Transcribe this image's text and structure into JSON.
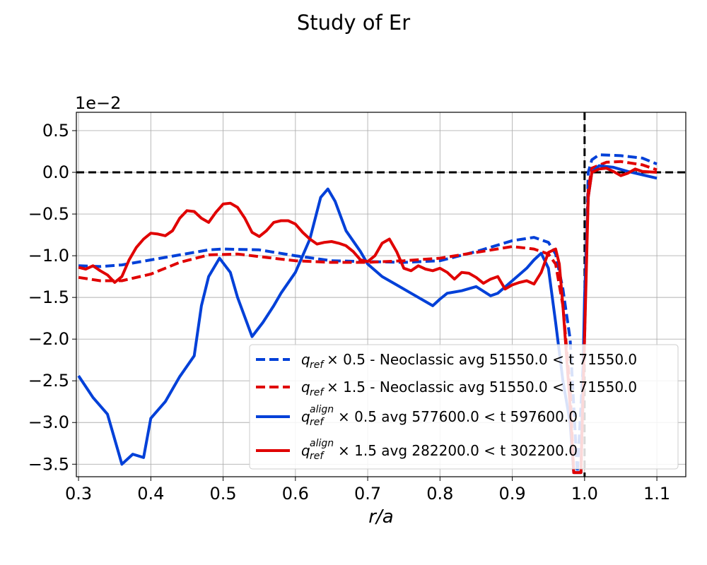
{
  "chart_data": {
    "type": "line",
    "title": "Study of Er",
    "xlabel": "r/a",
    "ylabel": "",
    "offset_label": "1e−2",
    "xlim": [
      0.297,
      1.14
    ],
    "ylim": [
      -3.65,
      0.72
    ],
    "x_ticks": [
      {
        "value": 0.3,
        "label": "0.3"
      },
      {
        "value": 0.4,
        "label": "0.4"
      },
      {
        "value": 0.5,
        "label": "0.5"
      },
      {
        "value": 0.6,
        "label": "0.6"
      },
      {
        "value": 0.7,
        "label": "0.7"
      },
      {
        "value": 0.8,
        "label": "0.8"
      },
      {
        "value": 0.9,
        "label": "0.9"
      },
      {
        "value": 1.0,
        "label": "1.0"
      },
      {
        "value": 1.1,
        "label": "1.1"
      }
    ],
    "y_ticks": [
      {
        "value": 0.5,
        "label": "0.5"
      },
      {
        "value": 0.0,
        "label": "0.0"
      },
      {
        "value": -0.5,
        "label": "−0.5"
      },
      {
        "value": -1.0,
        "label": "−1.0"
      },
      {
        "value": -1.5,
        "label": "−1.5"
      },
      {
        "value": -2.0,
        "label": "−2.0"
      },
      {
        "value": -2.5,
        "label": "−2.5"
      },
      {
        "value": -3.0,
        "label": "−3.0"
      },
      {
        "value": -3.5,
        "label": "−3.5"
      }
    ],
    "grid": true,
    "legend_position": "lower-right",
    "reference_lines": [
      {
        "orientation": "horizontal",
        "value": 0.0,
        "color": "#000000",
        "style": "dashed"
      },
      {
        "orientation": "vertical",
        "value": 1.0,
        "color": "#000000",
        "style": "dashed"
      }
    ],
    "series": [
      {
        "sym_base": "q",
        "sym_sub": "ref",
        "sym_sup": "",
        "label_rest": " × 0.5 - Neoclassic avg 51550.0 < t 71550.0",
        "color": "#0040d8",
        "style": "dashed",
        "points": [
          [
            0.3,
            -1.12
          ],
          [
            0.33,
            -1.13
          ],
          [
            0.36,
            -1.11
          ],
          [
            0.4,
            -1.05
          ],
          [
            0.44,
            -0.99
          ],
          [
            0.48,
            -0.93
          ],
          [
            0.5,
            -0.92
          ],
          [
            0.55,
            -0.93
          ],
          [
            0.6,
            -1.0
          ],
          [
            0.65,
            -1.06
          ],
          [
            0.7,
            -1.07
          ],
          [
            0.75,
            -1.08
          ],
          [
            0.8,
            -1.06
          ],
          [
            0.85,
            -0.95
          ],
          [
            0.9,
            -0.82
          ],
          [
            0.93,
            -0.78
          ],
          [
            0.95,
            -0.84
          ],
          [
            0.96,
            -0.98
          ],
          [
            0.97,
            -1.4
          ],
          [
            0.98,
            -2.0
          ],
          [
            0.99,
            -3.6
          ],
          [
            1.0,
            -2.0
          ],
          [
            1.005,
            0.0
          ],
          [
            1.01,
            0.15
          ],
          [
            1.02,
            0.21
          ],
          [
            1.05,
            0.2
          ],
          [
            1.08,
            0.17
          ],
          [
            1.1,
            0.1
          ]
        ]
      },
      {
        "sym_base": "q",
        "sym_sub": "ref",
        "sym_sup": "",
        "label_rest": " × 1.5 - Neoclassic avg 51550.0 < t 71550.0",
        "color": "#e00000",
        "style": "dashed",
        "points": [
          [
            0.3,
            -1.26
          ],
          [
            0.33,
            -1.3
          ],
          [
            0.36,
            -1.3
          ],
          [
            0.4,
            -1.22
          ],
          [
            0.44,
            -1.08
          ],
          [
            0.48,
            -0.99
          ],
          [
            0.52,
            -0.98
          ],
          [
            0.56,
            -1.02
          ],
          [
            0.6,
            -1.06
          ],
          [
            0.65,
            -1.08
          ],
          [
            0.7,
            -1.08
          ],
          [
            0.75,
            -1.06
          ],
          [
            0.8,
            -1.03
          ],
          [
            0.85,
            -0.96
          ],
          [
            0.9,
            -0.89
          ],
          [
            0.93,
            -0.92
          ],
          [
            0.95,
            -0.98
          ],
          [
            0.96,
            -1.1
          ],
          [
            0.97,
            -1.6
          ],
          [
            0.98,
            -2.6
          ],
          [
            0.985,
            -3.6
          ],
          [
            0.995,
            -3.6
          ],
          [
            1.0,
            -1.8
          ],
          [
            1.005,
            -0.2
          ],
          [
            1.01,
            0.05
          ],
          [
            1.03,
            0.12
          ],
          [
            1.05,
            0.13
          ],
          [
            1.08,
            0.09
          ],
          [
            1.1,
            0.03
          ]
        ]
      },
      {
        "sym_base": "q",
        "sym_sub": "ref",
        "sym_sup": "align",
        "label_rest": " × 0.5 avg 577600.0 < t 597600.0",
        "color": "#0040d8",
        "style": "solid",
        "points": [
          [
            0.3,
            -2.44
          ],
          [
            0.32,
            -2.7
          ],
          [
            0.34,
            -2.9
          ],
          [
            0.36,
            -3.5
          ],
          [
            0.375,
            -3.38
          ],
          [
            0.39,
            -3.42
          ],
          [
            0.4,
            -2.95
          ],
          [
            0.42,
            -2.75
          ],
          [
            0.44,
            -2.45
          ],
          [
            0.46,
            -2.2
          ],
          [
            0.47,
            -1.6
          ],
          [
            0.48,
            -1.25
          ],
          [
            0.495,
            -1.03
          ],
          [
            0.51,
            -1.2
          ],
          [
            0.52,
            -1.5
          ],
          [
            0.54,
            -1.97
          ],
          [
            0.555,
            -1.8
          ],
          [
            0.57,
            -1.6
          ],
          [
            0.58,
            -1.45
          ],
          [
            0.6,
            -1.2
          ],
          [
            0.61,
            -1.0
          ],
          [
            0.62,
            -0.8
          ],
          [
            0.635,
            -0.3
          ],
          [
            0.645,
            -0.2
          ],
          [
            0.655,
            -0.35
          ],
          [
            0.67,
            -0.7
          ],
          [
            0.69,
            -0.95
          ],
          [
            0.7,
            -1.1
          ],
          [
            0.72,
            -1.25
          ],
          [
            0.74,
            -1.35
          ],
          [
            0.76,
            -1.45
          ],
          [
            0.78,
            -1.55
          ],
          [
            0.79,
            -1.6
          ],
          [
            0.8,
            -1.52
          ],
          [
            0.81,
            -1.45
          ],
          [
            0.83,
            -1.42
          ],
          [
            0.85,
            -1.37
          ],
          [
            0.87,
            -1.48
          ],
          [
            0.88,
            -1.45
          ],
          [
            0.9,
            -1.3
          ],
          [
            0.92,
            -1.15
          ],
          [
            0.93,
            -1.05
          ],
          [
            0.94,
            -0.97
          ],
          [
            0.95,
            -1.15
          ],
          [
            0.96,
            -1.8
          ],
          [
            0.97,
            -2.5
          ],
          [
            0.98,
            -3.0
          ],
          [
            0.985,
            -3.6
          ],
          [
            0.995,
            -3.6
          ],
          [
            1.0,
            -1.5
          ],
          [
            1.005,
            -0.3
          ],
          [
            1.01,
            0.0
          ],
          [
            1.02,
            0.08
          ],
          [
            1.04,
            0.06
          ],
          [
            1.06,
            0.01
          ],
          [
            1.08,
            -0.03
          ],
          [
            1.1,
            -0.07
          ]
        ]
      },
      {
        "sym_base": "q",
        "sym_sub": "ref",
        "sym_sup": "align",
        "label_rest": " × 1.5 avg 282200.0 < t 302200.0",
        "color": "#e00000",
        "style": "solid",
        "points": [
          [
            0.3,
            -1.14
          ],
          [
            0.31,
            -1.16
          ],
          [
            0.32,
            -1.12
          ],
          [
            0.33,
            -1.18
          ],
          [
            0.34,
            -1.23
          ],
          [
            0.35,
            -1.32
          ],
          [
            0.36,
            -1.25
          ],
          [
            0.37,
            -1.05
          ],
          [
            0.38,
            -0.9
          ],
          [
            0.39,
            -0.8
          ],
          [
            0.4,
            -0.73
          ],
          [
            0.41,
            -0.74
          ],
          [
            0.42,
            -0.76
          ],
          [
            0.43,
            -0.7
          ],
          [
            0.44,
            -0.55
          ],
          [
            0.45,
            -0.46
          ],
          [
            0.46,
            -0.47
          ],
          [
            0.47,
            -0.55
          ],
          [
            0.48,
            -0.6
          ],
          [
            0.49,
            -0.48
          ],
          [
            0.5,
            -0.38
          ],
          [
            0.51,
            -0.37
          ],
          [
            0.52,
            -0.42
          ],
          [
            0.53,
            -0.55
          ],
          [
            0.54,
            -0.72
          ],
          [
            0.55,
            -0.77
          ],
          [
            0.56,
            -0.7
          ],
          [
            0.57,
            -0.6
          ],
          [
            0.58,
            -0.58
          ],
          [
            0.59,
            -0.58
          ],
          [
            0.6,
            -0.62
          ],
          [
            0.61,
            -0.72
          ],
          [
            0.62,
            -0.8
          ],
          [
            0.63,
            -0.86
          ],
          [
            0.64,
            -0.84
          ],
          [
            0.65,
            -0.83
          ],
          [
            0.66,
            -0.85
          ],
          [
            0.67,
            -0.88
          ],
          [
            0.68,
            -0.95
          ],
          [
            0.69,
            -1.05
          ],
          [
            0.7,
            -1.07
          ],
          [
            0.71,
            -1.0
          ],
          [
            0.72,
            -0.85
          ],
          [
            0.73,
            -0.8
          ],
          [
            0.74,
            -0.95
          ],
          [
            0.75,
            -1.15
          ],
          [
            0.76,
            -1.18
          ],
          [
            0.77,
            -1.12
          ],
          [
            0.78,
            -1.16
          ],
          [
            0.79,
            -1.18
          ],
          [
            0.8,
            -1.15
          ],
          [
            0.81,
            -1.2
          ],
          [
            0.82,
            -1.28
          ],
          [
            0.83,
            -1.2
          ],
          [
            0.84,
            -1.21
          ],
          [
            0.85,
            -1.26
          ],
          [
            0.86,
            -1.33
          ],
          [
            0.87,
            -1.28
          ],
          [
            0.88,
            -1.25
          ],
          [
            0.89,
            -1.4
          ],
          [
            0.9,
            -1.35
          ],
          [
            0.91,
            -1.32
          ],
          [
            0.92,
            -1.3
          ],
          [
            0.93,
            -1.34
          ],
          [
            0.94,
            -1.2
          ],
          [
            0.95,
            -0.96
          ],
          [
            0.96,
            -0.92
          ],
          [
            0.965,
            -1.1
          ],
          [
            0.97,
            -1.6
          ],
          [
            0.98,
            -2.8
          ],
          [
            0.985,
            -3.6
          ],
          [
            0.995,
            -3.6
          ],
          [
            1.0,
            -2.0
          ],
          [
            1.005,
            -0.3
          ],
          [
            1.01,
            0.0
          ],
          [
            1.02,
            0.04
          ],
          [
            1.03,
            0.05
          ],
          [
            1.04,
            0.01
          ],
          [
            1.05,
            -0.04
          ],
          [
            1.06,
            -0.01
          ],
          [
            1.07,
            0.04
          ],
          [
            1.08,
            0.01
          ],
          [
            1.1,
            0.0
          ]
        ]
      }
    ]
  }
}
